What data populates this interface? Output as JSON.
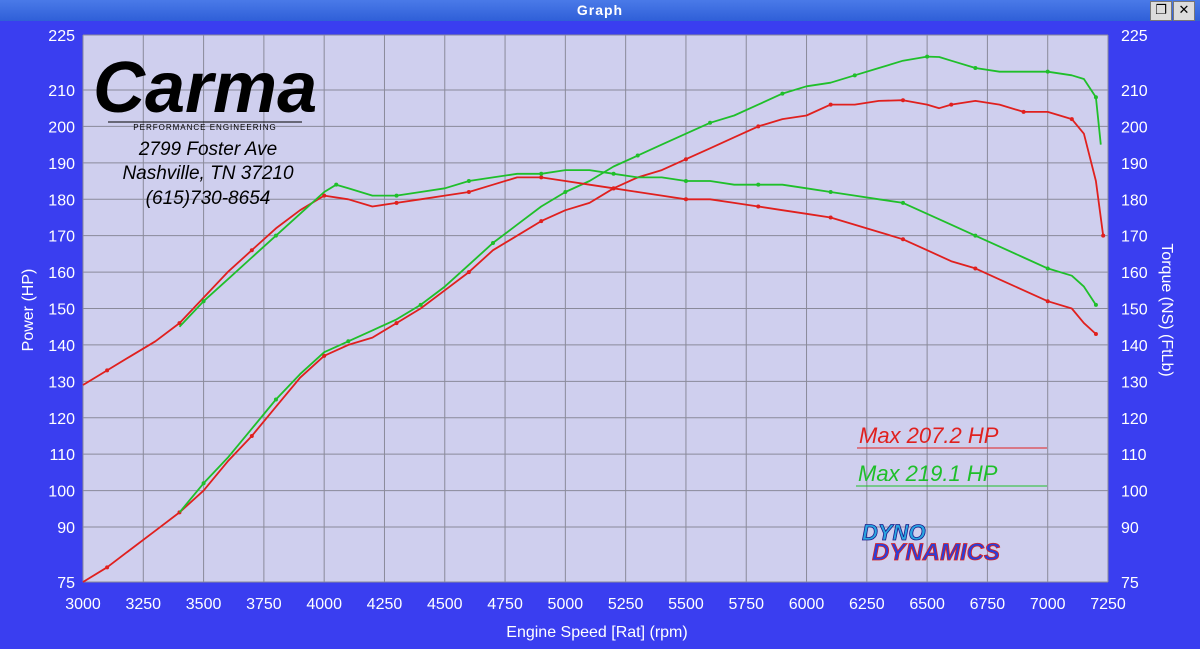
{
  "window": {
    "title": "Graph",
    "restore_icon": "restore-icon",
    "close_icon": "close-icon"
  },
  "colors": {
    "background": "#3a3ef0",
    "plot_bg": "#cfcfee",
    "grid": "#8a8a9a",
    "red": "#e0201e",
    "green": "#1fbf2a",
    "axis_text": "#ffffff"
  },
  "shop": {
    "logo_text": "Carma",
    "logo_subtext": "PERFORMANCE ENGINEERING",
    "address_line1": "2799 Foster Ave",
    "address_line2": "Nashville, TN 37210",
    "phone": "(615)730-8654"
  },
  "legend": {
    "red_label": "Max 207.2 HP",
    "green_label": "Max 219.1 HP"
  },
  "brand_logo": {
    "line1": "DYNO",
    "line2": "DYNAMICS"
  },
  "chart_data": {
    "type": "line",
    "xlabel": "Engine Speed [Rat] (rpm)",
    "ylabel_left": "Power (HP)",
    "ylabel_right": "Torque (NS) (FtLb)",
    "xlim": [
      3000,
      7250
    ],
    "ylim": [
      75,
      225
    ],
    "x_ticks": [
      "3000",
      "3250",
      "3500",
      "3750",
      "4000",
      "4250",
      "4500",
      "4750",
      "5000",
      "5250",
      "5500",
      "5750",
      "6000",
      "6250",
      "6500",
      "6750",
      "7000",
      "7250"
    ],
    "y_ticks": [
      "75",
      "90",
      "100",
      "110",
      "120",
      "130",
      "140",
      "150",
      "160",
      "170",
      "180",
      "190",
      "200",
      "210",
      "225"
    ],
    "grid": true,
    "series": [
      {
        "name": "",
        "kind": "power",
        "color": "red",
        "x": [
          3000,
          3100,
          3200,
          3300,
          3400,
          3500,
          3600,
          3700,
          3800,
          3900,
          4000,
          4100,
          4200,
          4300,
          4400,
          4500,
          4600,
          4700,
          4800,
          4900,
          5000,
          5100,
          5200,
          5300,
          5400,
          5500,
          5600,
          5700,
          5800,
          5900,
          6000,
          6100,
          6200,
          6300,
          6400,
          6500,
          6550,
          6600,
          6700,
          6800,
          6900,
          7000,
          7050,
          7100,
          7150,
          7200,
          7230
        ],
        "y": [
          75,
          79,
          84,
          89,
          94,
          100,
          108,
          115,
          123,
          131,
          137,
          140,
          142,
          146,
          150,
          155,
          160,
          166,
          170,
          174,
          177,
          179,
          183,
          186,
          188,
          191,
          194,
          197,
          200,
          202,
          203,
          206,
          206,
          207,
          207.2,
          206,
          205,
          206,
          207,
          206,
          204,
          204,
          203,
          202,
          198,
          185,
          170
        ]
      },
      {
        "name": "",
        "kind": "power",
        "color": "green",
        "x": [
          3400,
          3500,
          3600,
          3700,
          3800,
          3900,
          4000,
          4100,
          4200,
          4300,
          4400,
          4500,
          4600,
          4700,
          4800,
          4900,
          5000,
          5100,
          5200,
          5300,
          5400,
          5500,
          5600,
          5700,
          5800,
          5900,
          6000,
          6100,
          6200,
          6300,
          6400,
          6500,
          6550,
          6600,
          6700,
          6800,
          6900,
          7000,
          7100,
          7150,
          7200,
          7220
        ],
        "y": [
          94,
          102,
          109,
          117,
          125,
          132,
          138,
          141,
          144,
          147,
          151,
          156,
          162,
          168,
          173,
          178,
          182,
          185,
          189,
          192,
          195,
          198,
          201,
          203,
          206,
          209,
          211,
          212,
          214,
          216,
          218,
          219.1,
          219,
          218,
          216,
          215,
          215,
          215,
          214,
          213,
          208,
          195
        ]
      },
      {
        "name": "",
        "kind": "torque",
        "color": "red",
        "x": [
          3000,
          3100,
          3200,
          3300,
          3400,
          3500,
          3600,
          3700,
          3800,
          3900,
          4000,
          4100,
          4200,
          4300,
          4400,
          4500,
          4600,
          4700,
          4800,
          4900,
          5000,
          5100,
          5200,
          5300,
          5400,
          5500,
          5600,
          5700,
          5800,
          5900,
          6000,
          6100,
          6200,
          6300,
          6400,
          6500,
          6600,
          6700,
          6800,
          6900,
          7000,
          7100,
          7150,
          7200
        ],
        "y": [
          129,
          133,
          137,
          141,
          146,
          153,
          160,
          166,
          172,
          177,
          181,
          180,
          178,
          179,
          180,
          181,
          182,
          184,
          186,
          186,
          185,
          184,
          183,
          182,
          181,
          180,
          180,
          179,
          178,
          177,
          176,
          175,
          173,
          171,
          169,
          166,
          163,
          161,
          158,
          155,
          152,
          150,
          146,
          143
        ]
      },
      {
        "name": "",
        "kind": "torque",
        "color": "green",
        "x": [
          3400,
          3500,
          3600,
          3700,
          3800,
          3900,
          4000,
          4050,
          4100,
          4200,
          4300,
          4400,
          4500,
          4600,
          4700,
          4800,
          4900,
          5000,
          5100,
          5200,
          5300,
          5400,
          5500,
          5600,
          5700,
          5800,
          5900,
          6000,
          6100,
          6200,
          6300,
          6400,
          6500,
          6600,
          6700,
          6800,
          6900,
          7000,
          7100,
          7150,
          7200
        ],
        "y": [
          145,
          152,
          158,
          164,
          170,
          176,
          182,
          184,
          183,
          181,
          181,
          182,
          183,
          185,
          186,
          187,
          187,
          188,
          188,
          187,
          186,
          186,
          185,
          185,
          184,
          184,
          184,
          183,
          182,
          181,
          180,
          179,
          176,
          173,
          170,
          167,
          164,
          161,
          159,
          156,
          151
        ]
      }
    ]
  }
}
